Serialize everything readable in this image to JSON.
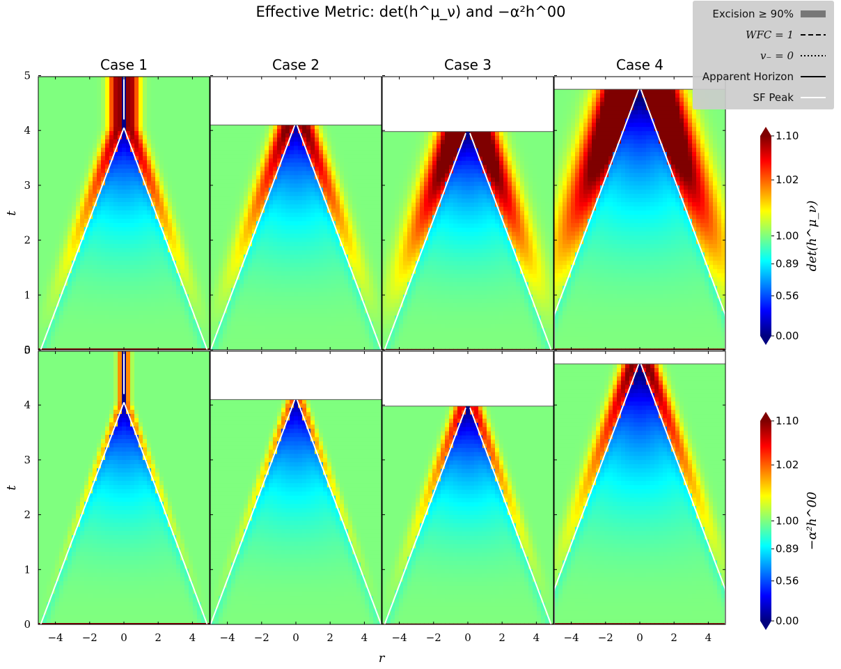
{
  "title": "Effective Metric: det(h^μ_ν) and −α²h^00",
  "xlabel": "r",
  "ylabel": "t",
  "panel_titles": [
    "Case 1",
    "Case 2",
    "Case 3",
    "Case 4"
  ],
  "x_tick_labels": [
    "−4",
    "−2",
    "0",
    "2",
    "4"
  ],
  "y_tick_labels": [
    "0",
    "1",
    "2",
    "3",
    "4",
    "5"
  ],
  "colorbars": [
    {
      "label": "det(h^μ_ν)",
      "ticks": [
        "1.10",
        "1.02",
        "1.00",
        "0.89",
        "0.56",
        "0.00"
      ]
    },
    {
      "label": "−α²h^00",
      "ticks": [
        "1.10",
        "1.02",
        "1.00",
        "0.89",
        "0.56",
        "0.00"
      ]
    }
  ],
  "legend": [
    {
      "label": "Excision ≥ 90%",
      "style": "filled",
      "color": "#777777"
    },
    {
      "label": "WFC = 1",
      "style": "dashed",
      "color": "#000000"
    },
    {
      "label": "v₋ = 0",
      "style": "dotted",
      "color": "#000000"
    },
    {
      "label": "Apparent Horizon",
      "style": "solid",
      "color": "#000000"
    },
    {
      "label": "SF Peak",
      "style": "solid",
      "color": "#ffffff"
    }
  ],
  "chart_data": {
    "type": "heatmap",
    "colormap": "jet",
    "x_range": [
      -5,
      5
    ],
    "y_range": [
      0,
      5.15
    ],
    "colorbar_ticks": [
      0.0,
      0.56,
      0.89,
      1.0,
      1.02,
      1.1
    ],
    "rows": [
      "det(h^μ_ν)",
      "−α²h^00"
    ],
    "cases": [
      {
        "name": "Case 1",
        "end_time": 5.15,
        "sf_peak_merge_t": 4.2,
        "strength": 0.9,
        "band_width": 0.55,
        "sf_peak_vertex_t": 4.05
      },
      {
        "name": "Case 2",
        "end_time": 4.1,
        "sf_peak_merge_t": null,
        "strength": 1.0,
        "band_width": 0.65,
        "sf_peak_vertex_t": 4.15
      },
      {
        "name": "Case 3",
        "end_time": 3.98,
        "sf_peak_merge_t": null,
        "strength": 1.4,
        "band_width": 0.95,
        "sf_peak_vertex_t": 4.05
      },
      {
        "name": "Case 4",
        "end_time": 4.75,
        "sf_peak_merge_t": null,
        "strength": 1.8,
        "band_width": 1.3,
        "sf_peak_vertex_t": 4.8
      }
    ]
  }
}
